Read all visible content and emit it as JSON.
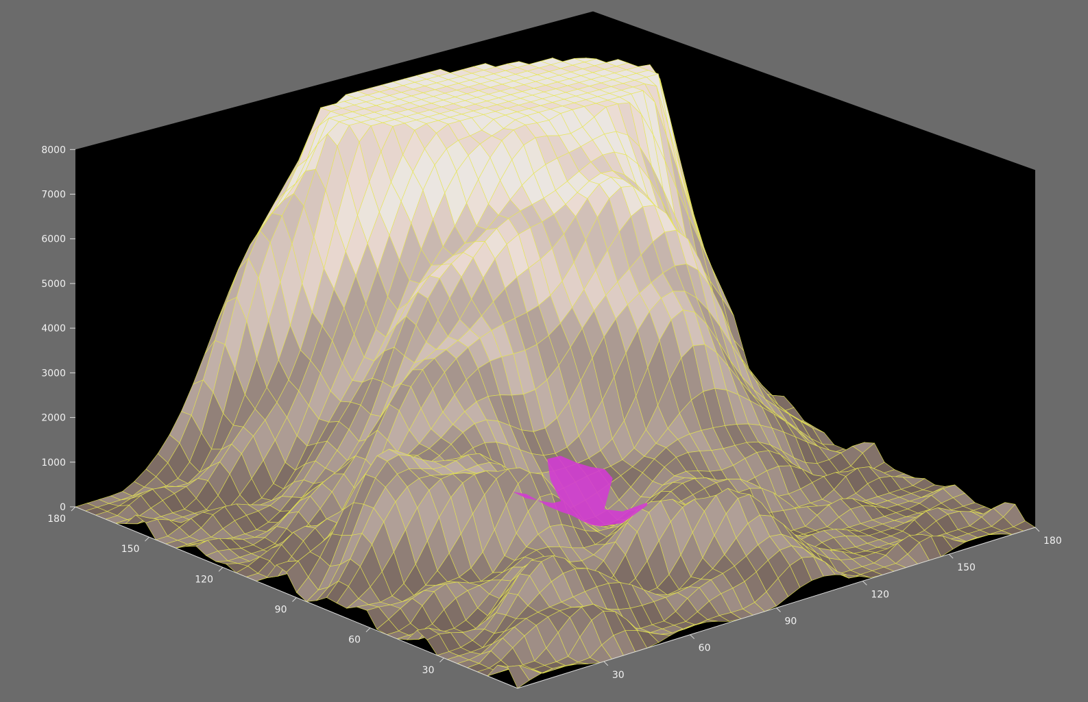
{
  "chart_data": {
    "type": "surface",
    "title": "",
    "xlabel": "",
    "ylabel": "",
    "zlabel": "",
    "x_range": [
      0,
      180
    ],
    "y_range": [
      0,
      180
    ],
    "zlim": [
      0,
      8000
    ],
    "z_ticks": [
      0,
      1000,
      2000,
      3000,
      4000,
      5000,
      6000,
      7000,
      8000
    ],
    "left_axis_ticks": [
      30,
      60,
      90,
      120,
      150,
      180
    ],
    "right_axis_ticks": [
      30,
      60,
      90,
      120,
      150,
      180
    ],
    "wall_color": "#000000",
    "background_color": "#6b6b6b",
    "wireframe_color": "#e6e650",
    "highlight_region_color": "#d23cd2",
    "grid": true,
    "legend": "none"
  }
}
